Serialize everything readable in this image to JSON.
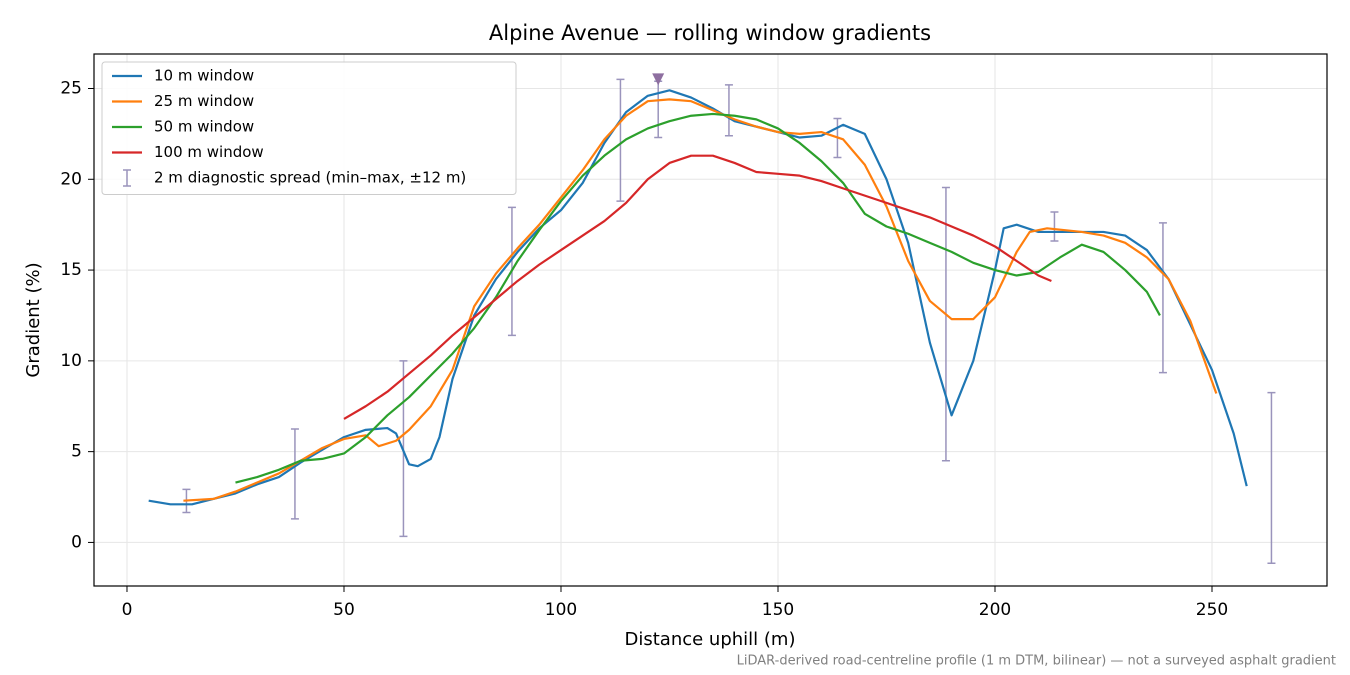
{
  "chart_data": {
    "type": "line",
    "title": "Alpine Avenue — rolling window gradients",
    "x_label": "Distance uphill (m)",
    "y_label": "Gradient (%)",
    "footnote": "LiDAR-derived road-centreline profile (1 m DTM, bilinear) — not a surveyed asphalt gradient",
    "xlim": [
      -7.6,
      276.5
    ],
    "ylim": [
      -2.4,
      26.9
    ],
    "xticks": [
      0,
      50,
      100,
      150,
      200,
      250
    ],
    "yticks": [
      0,
      5,
      10,
      15,
      20,
      25
    ],
    "grid": true,
    "legend": "upper left",
    "series": [
      {
        "name": "10 m window",
        "color": "#1f77b4",
        "x": [
          5,
          10,
          15,
          20,
          25,
          30,
          35,
          40,
          45,
          50,
          55,
          60,
          62,
          65,
          67,
          70,
          72,
          75,
          80,
          85,
          90,
          95,
          100,
          105,
          110,
          115,
          120,
          125,
          130,
          135,
          140,
          145,
          150,
          155,
          160,
          165,
          170,
          175,
          180,
          185,
          190,
          195,
          200,
          202,
          205,
          210,
          215,
          220,
          225,
          230,
          235,
          240,
          245,
          250,
          255,
          258
        ],
        "values": [
          2.3,
          2.1,
          2.1,
          2.4,
          2.7,
          3.2,
          3.6,
          4.4,
          5.1,
          5.8,
          6.2,
          6.3,
          6.0,
          4.3,
          4.2,
          4.6,
          5.8,
          9.0,
          12.5,
          14.5,
          16.0,
          17.3,
          18.3,
          19.8,
          22.0,
          23.7,
          24.6,
          24.9,
          24.5,
          23.9,
          23.2,
          22.9,
          22.6,
          22.3,
          22.4,
          23.0,
          22.5,
          20.0,
          16.5,
          11.0,
          7.0,
          10.0,
          15.0,
          17.3,
          17.5,
          17.1,
          17.1,
          17.1,
          17.1,
          16.9,
          16.1,
          14.5,
          12.0,
          9.5,
          6.0,
          3.1
        ]
      },
      {
        "name": "25 m window",
        "color": "#ff7f0e",
        "x": [
          13,
          20,
          25,
          30,
          35,
          40,
          45,
          50,
          55,
          58,
          62,
          65,
          70,
          75,
          80,
          85,
          90,
          95,
          100,
          105,
          110,
          115,
          120,
          125,
          130,
          135,
          140,
          145,
          150,
          155,
          160,
          165,
          170,
          175,
          180,
          185,
          190,
          195,
          200,
          205,
          208,
          212,
          220,
          225,
          230,
          235,
          240,
          245,
          251
        ],
        "values": [
          2.3,
          2.4,
          2.8,
          3.3,
          3.8,
          4.5,
          5.2,
          5.7,
          5.9,
          5.3,
          5.6,
          6.2,
          7.5,
          9.5,
          13.0,
          14.8,
          16.2,
          17.5,
          19.0,
          20.5,
          22.2,
          23.5,
          24.3,
          24.4,
          24.3,
          23.8,
          23.3,
          22.9,
          22.6,
          22.5,
          22.6,
          22.2,
          20.8,
          18.5,
          15.5,
          13.3,
          12.3,
          12.3,
          13.5,
          16.0,
          17.1,
          17.3,
          17.1,
          16.9,
          16.5,
          15.7,
          14.5,
          12.2,
          8.2
        ]
      },
      {
        "name": "50 m window",
        "color": "#2ca02c",
        "x": [
          25,
          30,
          35,
          40,
          45,
          50,
          55,
          60,
          65,
          70,
          75,
          80,
          85,
          90,
          95,
          100,
          105,
          110,
          115,
          120,
          125,
          130,
          135,
          140,
          145,
          150,
          155,
          160,
          165,
          170,
          175,
          180,
          185,
          190,
          195,
          200,
          205,
          210,
          215,
          220,
          225,
          230,
          235,
          238
        ],
        "values": [
          3.3,
          3.6,
          4.0,
          4.5,
          4.6,
          4.9,
          5.8,
          7.0,
          8.0,
          9.2,
          10.4,
          11.8,
          13.5,
          15.5,
          17.2,
          18.8,
          20.2,
          21.3,
          22.2,
          22.8,
          23.2,
          23.5,
          23.6,
          23.5,
          23.3,
          22.8,
          22.0,
          21.0,
          19.8,
          18.1,
          17.4,
          17.0,
          16.5,
          16.0,
          15.4,
          15.0,
          14.7,
          14.9,
          15.7,
          16.4,
          16.0,
          15.0,
          13.8,
          12.5
        ]
      },
      {
        "name": "100 m window",
        "color": "#d62728",
        "x": [
          50,
          55,
          60,
          65,
          70,
          75,
          80,
          85,
          90,
          95,
          100,
          105,
          110,
          115,
          120,
          125,
          130,
          135,
          140,
          145,
          150,
          155,
          160,
          165,
          170,
          175,
          180,
          185,
          190,
          195,
          200,
          205,
          210,
          213
        ],
        "values": [
          6.8,
          7.5,
          8.3,
          9.3,
          10.3,
          11.4,
          12.4,
          13.4,
          14.4,
          15.3,
          16.1,
          16.9,
          17.7,
          18.7,
          20.0,
          20.9,
          21.3,
          21.3,
          20.9,
          20.4,
          20.3,
          20.2,
          19.9,
          19.5,
          19.1,
          18.7,
          18.3,
          17.9,
          17.4,
          16.9,
          16.3,
          15.5,
          14.7,
          14.4
        ]
      }
    ],
    "error_bars": {
      "name": "2 m diagnostic spread (min–max, ±12 m)",
      "color": "#9a94bc",
      "x": [
        13.7,
        38.7,
        63.7,
        88.7,
        113.7,
        122.4,
        138.7,
        163.7,
        188.7,
        213.7,
        238.7,
        263.7
      ],
      "low": [
        1.65,
        1.3,
        0.33,
        11.4,
        18.8,
        22.3,
        22.4,
        21.2,
        4.5,
        16.6,
        9.35,
        -1.15
      ],
      "high": [
        2.92,
        6.25,
        10.0,
        18.45,
        25.5,
        25.4,
        25.2,
        23.35,
        19.55,
        18.2,
        17.6,
        8.25
      ]
    },
    "marker": {
      "x": 122.4,
      "y": 25.5,
      "color": "#8e6fa0"
    }
  }
}
